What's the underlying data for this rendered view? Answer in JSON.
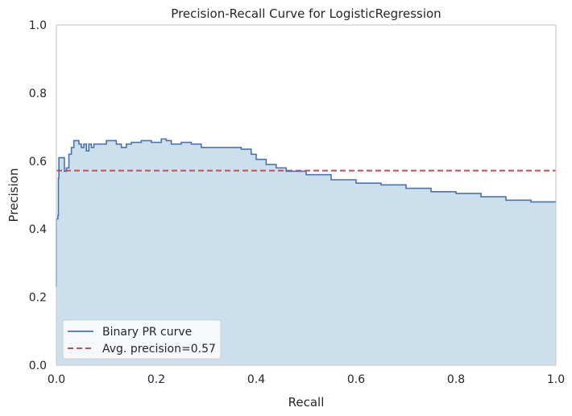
{
  "chart_data": {
    "type": "area",
    "title": "Precision-Recall Curve for LogisticRegression",
    "xlabel": "Recall",
    "ylabel": "Precision",
    "xlim": [
      0.0,
      1.0
    ],
    "ylim": [
      0.0,
      1.0
    ],
    "xticks": [
      0.0,
      0.2,
      0.4,
      0.6,
      0.8,
      1.0
    ],
    "xtick_labels": [
      "0.0",
      "0.2",
      "0.4",
      "0.6",
      "0.8",
      "1.0"
    ],
    "yticks": [
      0.0,
      0.2,
      0.4,
      0.6,
      0.8,
      1.0
    ],
    "ytick_labels": [
      "0.0",
      "0.2",
      "0.4",
      "0.6",
      "0.8",
      "1.0"
    ],
    "grid": false,
    "legend_position": "lower-left",
    "series": [
      {
        "name": "Binary PR curve",
        "style": "solid",
        "color": "#4C72B0",
        "fill_color": "#A6CADF",
        "x": [
          0.0,
          0.0,
          0.003,
          0.004,
          0.005,
          0.008,
          0.012,
          0.016,
          0.02,
          0.025,
          0.03,
          0.035,
          0.04,
          0.045,
          0.05,
          0.055,
          0.06,
          0.065,
          0.07,
          0.075,
          0.08,
          0.09,
          0.1,
          0.11,
          0.12,
          0.13,
          0.14,
          0.15,
          0.17,
          0.19,
          0.21,
          0.22,
          0.23,
          0.25,
          0.27,
          0.29,
          0.3,
          0.32,
          0.35,
          0.37,
          0.39,
          0.4,
          0.42,
          0.44,
          0.46,
          0.5,
          0.55,
          0.6,
          0.65,
          0.7,
          0.75,
          0.8,
          0.85,
          0.9,
          0.95,
          1.0
        ],
        "y": [
          0.23,
          0.43,
          0.44,
          0.55,
          0.61,
          0.61,
          0.61,
          0.57,
          0.58,
          0.62,
          0.64,
          0.66,
          0.66,
          0.65,
          0.64,
          0.65,
          0.63,
          0.65,
          0.64,
          0.65,
          0.65,
          0.65,
          0.66,
          0.66,
          0.65,
          0.64,
          0.65,
          0.655,
          0.66,
          0.655,
          0.665,
          0.66,
          0.65,
          0.655,
          0.65,
          0.64,
          0.64,
          0.64,
          0.64,
          0.635,
          0.62,
          0.605,
          0.59,
          0.58,
          0.57,
          0.56,
          0.545,
          0.535,
          0.53,
          0.52,
          0.51,
          0.505,
          0.495,
          0.485,
          0.48,
          0.478
        ]
      },
      {
        "name": "Avg. precision=0.57",
        "style": "dashed",
        "color": "#C44E52",
        "x": [
          0.0,
          1.0
        ],
        "y": [
          0.572,
          0.572
        ]
      }
    ]
  }
}
